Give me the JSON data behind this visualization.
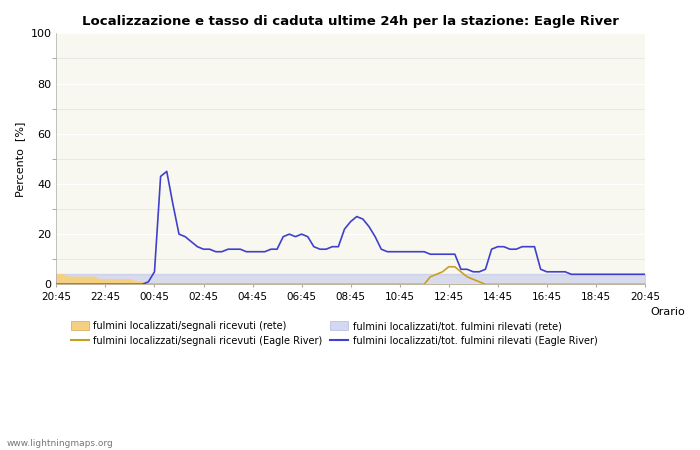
{
  "title": "Localizzazione e tasso di caduta ultime 24h per la stazione: Eagle River",
  "xlabel": "Orario",
  "ylabel": "Percento  [%]",
  "ylim": [
    0,
    100
  ],
  "background_color": "#ffffff",
  "plot_bg_color": "#f8f8f0",
  "watermark": "www.lightningmaps.org",
  "x_ticks_labels": [
    "20:45",
    "22:45",
    "00:45",
    "02:45",
    "04:45",
    "06:45",
    "08:45",
    "10:45",
    "12:45",
    "14:45",
    "16:45",
    "18:45",
    "20:45"
  ],
  "legend": [
    {
      "label": "fulmini localizzati/segnali ricevuti (rete)",
      "color": "#f5d080",
      "type": "fill"
    },
    {
      "label": "fulmini localizzati/segnali ricevuti (Eagle River)",
      "color": "#c8a020",
      "type": "line"
    },
    {
      "label": "fulmini localizzati/tot. fulmini rilevati (rete)",
      "color": "#b0b8e8",
      "type": "fill"
    },
    {
      "label": "fulmini localizzati/tot. fulmini rilevati (Eagle River)",
      "color": "#4040cc",
      "type": "line"
    }
  ],
  "n_points": 97,
  "series": {
    "net_signals": [
      4,
      4,
      3,
      3,
      3,
      3,
      3,
      2,
      2,
      2,
      2,
      2,
      2,
      1,
      1,
      0,
      0,
      0,
      0,
      0,
      0,
      0,
      0,
      0,
      0,
      0,
      0,
      0,
      0,
      0,
      0,
      0,
      0,
      0,
      0,
      0,
      0,
      0,
      0,
      0,
      0,
      0,
      0,
      0,
      0,
      0,
      0,
      0,
      0,
      0,
      0,
      0,
      0,
      0,
      0,
      0,
      0,
      0,
      0,
      0,
      0,
      0,
      0,
      0,
      0,
      0,
      0,
      0,
      0,
      0,
      0,
      0,
      0,
      0,
      0,
      0,
      0,
      0,
      0,
      0,
      0,
      0,
      0,
      0,
      0,
      0,
      0,
      0,
      0,
      0,
      0,
      0,
      0,
      0,
      0,
      0,
      0
    ],
    "er_signals": [
      0,
      0,
      0,
      0,
      0,
      0,
      0,
      0,
      0,
      0,
      0,
      0,
      0,
      0,
      0,
      0,
      0,
      0,
      0,
      0,
      0,
      0,
      0,
      0,
      0,
      0,
      0,
      0,
      0,
      0,
      0,
      0,
      0,
      0,
      0,
      0,
      0,
      0,
      0,
      0,
      0,
      0,
      0,
      0,
      0,
      0,
      0,
      0,
      0,
      0,
      0,
      0,
      0,
      0,
      0,
      0,
      0,
      0,
      0,
      0,
      0,
      3,
      4,
      5,
      7,
      7,
      5,
      3,
      2,
      1,
      0,
      0,
      0,
      0,
      0,
      0,
      0,
      0,
      0,
      0,
      0,
      0,
      0,
      0,
      0,
      0,
      0,
      0,
      0,
      0,
      0,
      0,
      0,
      0,
      0,
      0,
      0
    ],
    "net_total": [
      4,
      4,
      4,
      4,
      4,
      4,
      4,
      4,
      4,
      4,
      4,
      4,
      4,
      4,
      4,
      4,
      4,
      4,
      4,
      4,
      4,
      4,
      4,
      4,
      4,
      4,
      4,
      4,
      4,
      4,
      4,
      4,
      4,
      4,
      4,
      4,
      4,
      4,
      4,
      4,
      4,
      4,
      4,
      4,
      4,
      4,
      4,
      4,
      4,
      4,
      4,
      4,
      4,
      4,
      4,
      4,
      4,
      4,
      4,
      4,
      4,
      4,
      4,
      4,
      4,
      4,
      4,
      4,
      4,
      4,
      4,
      4,
      4,
      4,
      4,
      4,
      4,
      4,
      4,
      4,
      4,
      4,
      4,
      4,
      4,
      4,
      4,
      4,
      4,
      4,
      4,
      4,
      4,
      4,
      4,
      4,
      4
    ],
    "er_total": [
      0,
      0,
      0,
      0,
      0,
      0,
      0,
      0,
      0,
      0,
      0,
      0,
      0,
      0,
      0,
      1,
      5,
      43,
      45,
      32,
      20,
      19,
      17,
      15,
      14,
      14,
      13,
      13,
      14,
      14,
      14,
      13,
      13,
      13,
      13,
      14,
      14,
      19,
      20,
      19,
      20,
      19,
      15,
      14,
      14,
      15,
      15,
      22,
      25,
      27,
      26,
      23,
      19,
      14,
      13,
      13,
      13,
      13,
      13,
      13,
      13,
      12,
      12,
      12,
      12,
      12,
      6,
      6,
      5,
      5,
      6,
      14,
      15,
      15,
      14,
      14,
      15,
      15,
      15,
      6,
      5,
      5,
      5,
      5,
      4,
      4,
      4,
      4,
      4,
      4,
      4,
      4,
      4,
      4,
      4,
      4,
      4
    ]
  }
}
